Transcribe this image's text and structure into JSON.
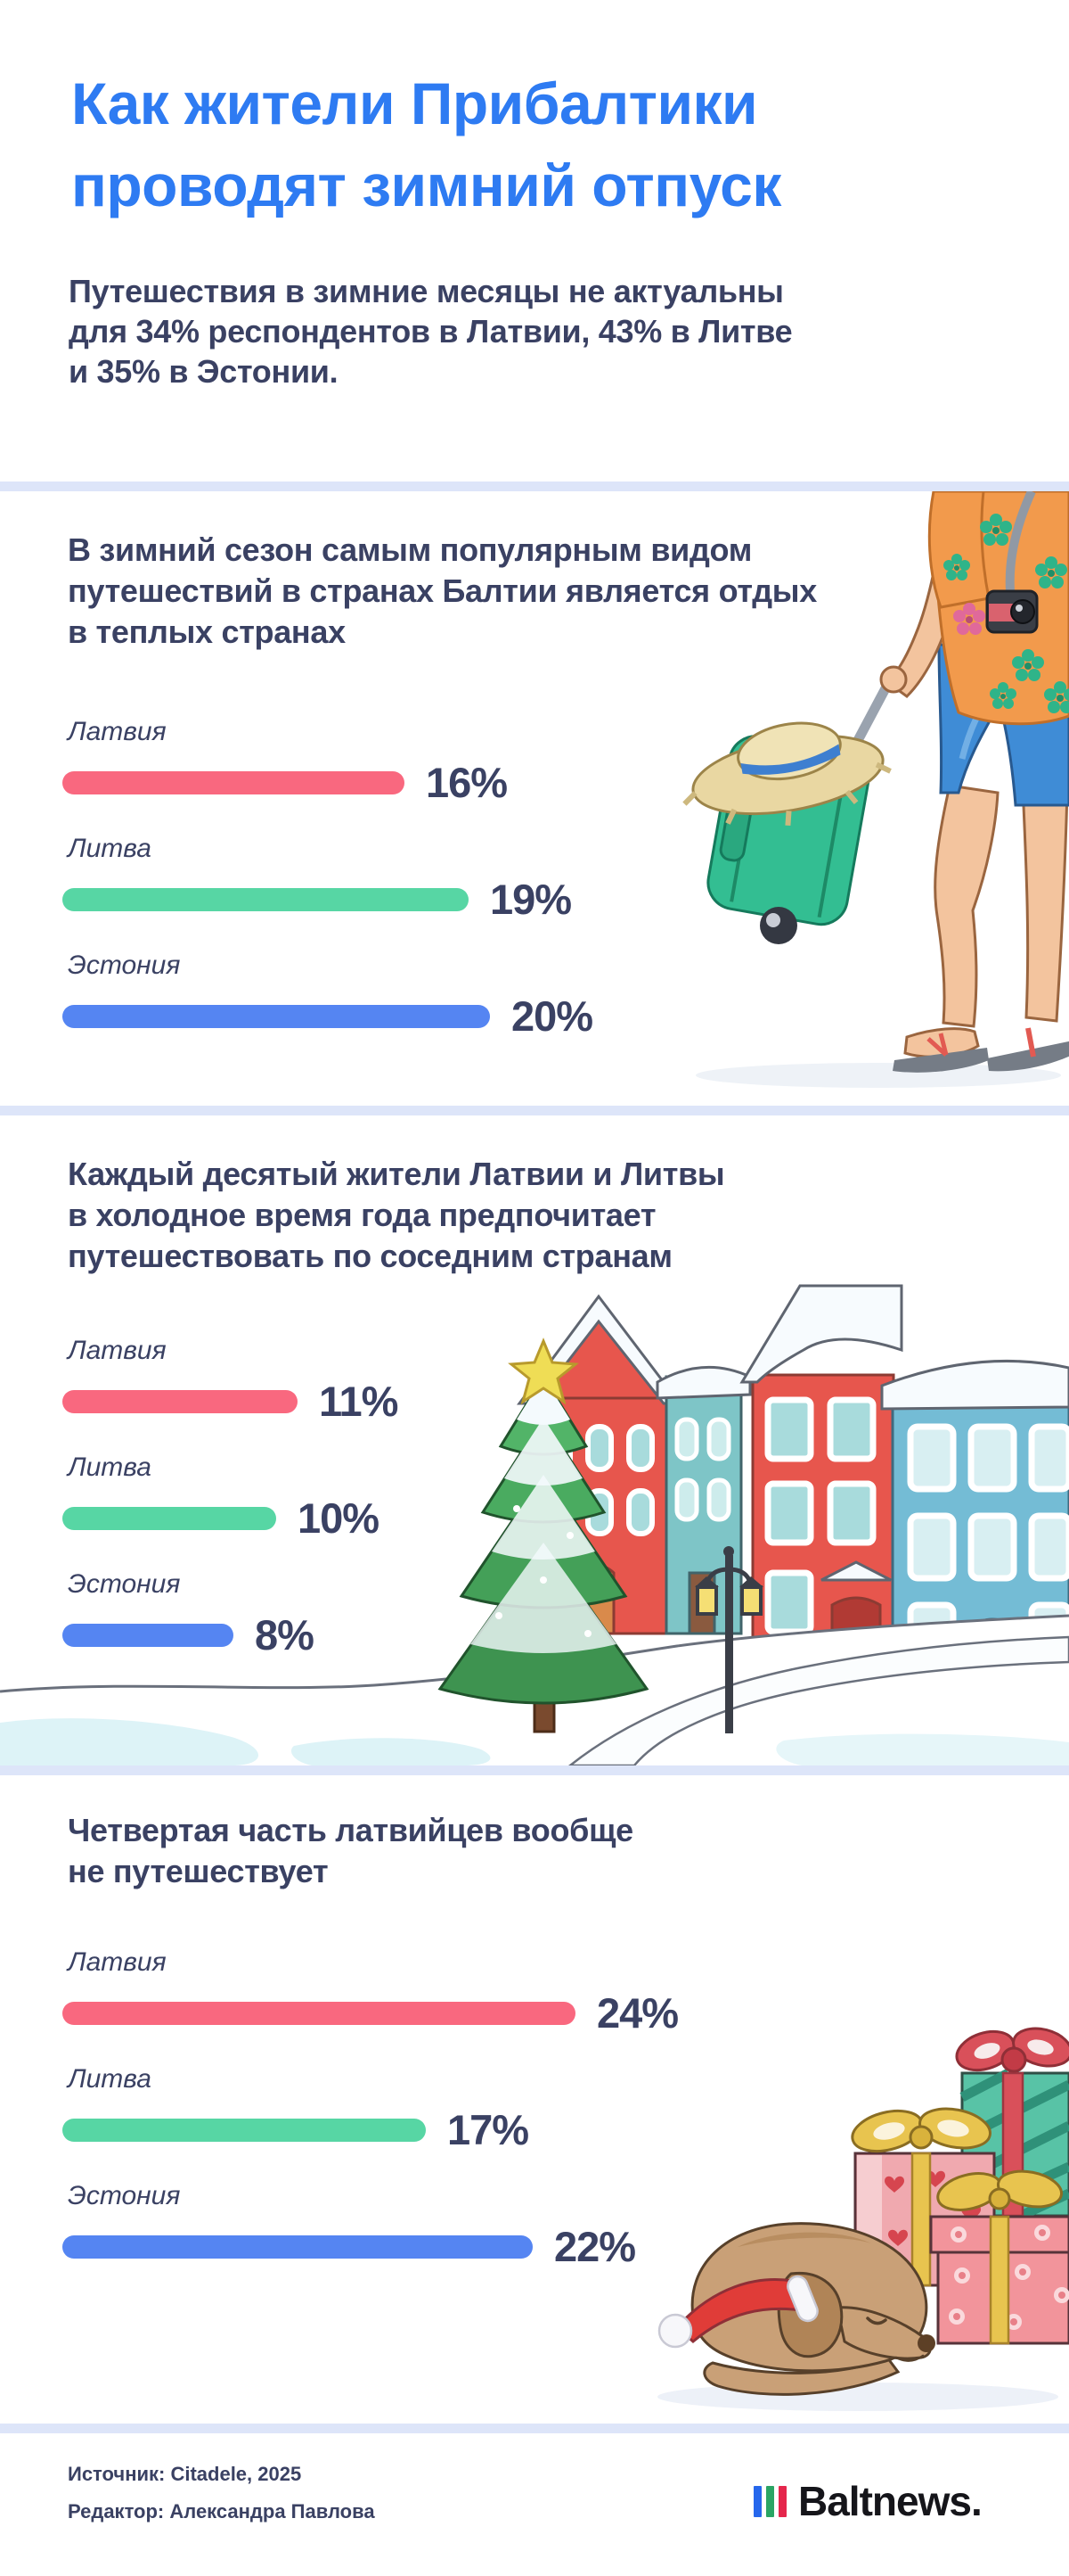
{
  "header": {
    "title_lines": [
      "Как жители Прибалтики",
      "проводят зимний отпуск"
    ],
    "subtitle_lines": [
      "Путешествия в зимние месяцы не актуальны",
      "для 34% респондентов в Латвии, 43% в Литве",
      "и 35% в Эстонии."
    ]
  },
  "sections": [
    {
      "heading_lines": [
        "В зимний сезон самым популярным видом",
        "путешествий в странах Балтии является отдых",
        "в теплых странах"
      ],
      "illustration": "traveler-with-suitcase-illustration",
      "rows": [
        {
          "label": "Латвия",
          "value": 16,
          "display": "16%",
          "color": "#F9687F"
        },
        {
          "label": "Литва",
          "value": 19,
          "display": "19%",
          "color": "#57D6A4"
        },
        {
          "label": "Эстония",
          "value": 20,
          "display": "20%",
          "color": "#5585F2"
        }
      ]
    },
    {
      "heading_lines": [
        "Каждый десятый жители Латвии и Литвы",
        "в холодное время года предпочитает",
        "путешествовать по соседним странам"
      ],
      "illustration": "winter-town-illustration",
      "rows": [
        {
          "label": "Латвия",
          "value": 11,
          "display": "11%",
          "color": "#F9687F"
        },
        {
          "label": "Литва",
          "value": 10,
          "display": "10%",
          "color": "#57D6A4"
        },
        {
          "label": "Эстония",
          "value": 8,
          "display": "8%",
          "color": "#5585F2"
        }
      ]
    },
    {
      "heading_lines": [
        "Четвертая часть латвийцев вообще",
        "не путешествует"
      ],
      "illustration": "gifts-and-sleeping-dog-illustration",
      "rows": [
        {
          "label": "Латвия",
          "value": 24,
          "display": "24%",
          "color": "#F9687F"
        },
        {
          "label": "Литва",
          "value": 17,
          "display": "17%",
          "color": "#57D6A4"
        },
        {
          "label": "Эстония",
          "value": 22,
          "display": "22%",
          "color": "#5585F2"
        }
      ]
    }
  ],
  "chart_data": [
    {
      "type": "bar",
      "orientation": "horizontal",
      "title": "В зимний сезон самым популярным видом путешествий в странах Балтии является отдых в теплых странах",
      "categories": [
        "Латвия",
        "Литва",
        "Эстония"
      ],
      "values": [
        16,
        19,
        20
      ],
      "unit": "%",
      "bar_colors": [
        "#F9687F",
        "#57D6A4",
        "#5585F2"
      ],
      "xlim": [
        0,
        50
      ],
      "grid": false,
      "legend": "none"
    },
    {
      "type": "bar",
      "orientation": "horizontal",
      "title": "Каждый десятый жители Латвии и Литвы в холодное время года предпочитает путешествовать по соседним странам",
      "categories": [
        "Латвия",
        "Литва",
        "Эстония"
      ],
      "values": [
        11,
        10,
        8
      ],
      "unit": "%",
      "bar_colors": [
        "#F9687F",
        "#57D6A4",
        "#5585F2"
      ],
      "xlim": [
        0,
        50
      ],
      "grid": false,
      "legend": "none"
    },
    {
      "type": "bar",
      "orientation": "horizontal",
      "title": "Четвертая часть латвийцев вообще не путешествует",
      "categories": [
        "Латвия",
        "Литва",
        "Эстония"
      ],
      "values": [
        24,
        17,
        22
      ],
      "unit": "%",
      "bar_colors": [
        "#F9687F",
        "#57D6A4",
        "#5585F2"
      ],
      "xlim": [
        0,
        50
      ],
      "grid": false,
      "legend": "none"
    }
  ],
  "footer": {
    "source": "Источник: Citadele, 2025",
    "editor": "Редактор: Александра Павлова",
    "brand": "Baltnews.",
    "logo_bar_colors": [
      "#2667EC",
      "#2AA564",
      "#E5274C"
    ]
  },
  "colors": {
    "title_blue": "#2E7BF2",
    "text_navy": "#3A4163",
    "divider": "#DDE5F9",
    "bar_pink": "#F9687F",
    "bar_green": "#57D6A4",
    "bar_blue": "#5585F2"
  }
}
